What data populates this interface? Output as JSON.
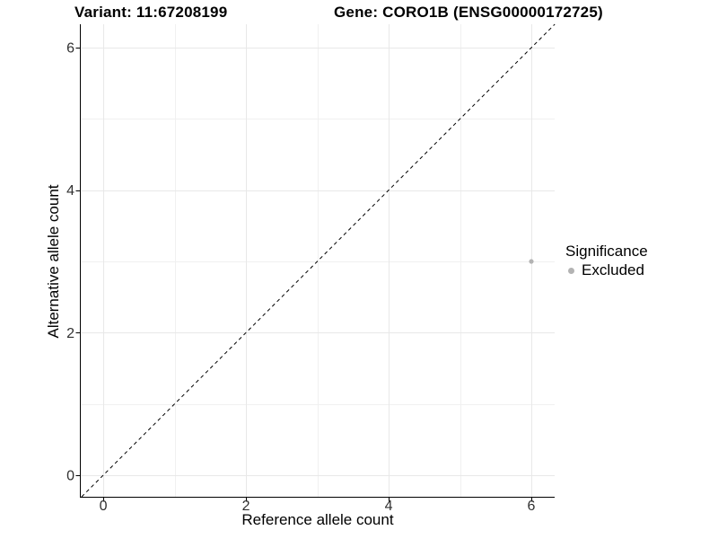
{
  "figure": {
    "title_left": "Variant: 11:67208199",
    "title_right": "Gene: CORO1B (ENSG00000172725)"
  },
  "chart_data": {
    "type": "scatter",
    "title": "Variant: 11:67208199   Gene: CORO1B (ENSG00000172725)",
    "xlabel": "Reference allele count",
    "ylabel": "Alternative allele count",
    "xlim": [
      -0.315,
      6.327
    ],
    "ylim": [
      -0.303,
      6.329
    ],
    "x_major_ticks": [
      0,
      2,
      4,
      6
    ],
    "y_major_ticks": [
      0,
      2,
      4,
      6
    ],
    "x_minor_ticks": [
      1,
      3,
      5
    ],
    "y_minor_ticks": [
      1,
      3,
      5
    ],
    "grid": true,
    "points": [
      {
        "x": 6,
        "y": 3,
        "series": "Excluded"
      }
    ],
    "reference_line": {
      "equation": "y = x",
      "style": "dashed",
      "from": [
        -0.303,
        -0.303
      ],
      "to": [
        6.329,
        6.329
      ]
    },
    "legend": {
      "title": "Significance",
      "position": "right",
      "items": [
        {
          "label": "Excluded",
          "color": "#b3b3b3",
          "marker": "dot-icon"
        }
      ]
    },
    "colors": {
      "point": "#b3b3b3",
      "grid_major": "#e8e8e8",
      "grid_minor": "#f0f0f0",
      "axis_line": "#000000",
      "reference_line": "#000000",
      "tick_text": "#303030",
      "title_text": "#000000"
    }
  }
}
